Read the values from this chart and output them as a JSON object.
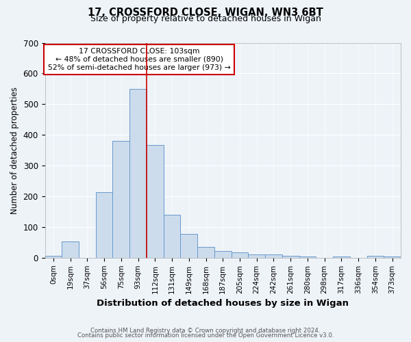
{
  "title1": "17, CROSSFORD CLOSE, WIGAN, WN3 6BT",
  "title2": "Size of property relative to detached houses in Wigan",
  "xlabel": "Distribution of detached houses by size in Wigan",
  "ylabel": "Number of detached properties",
  "bar_labels": [
    "0sqm",
    "19sqm",
    "37sqm",
    "56sqm",
    "75sqm",
    "93sqm",
    "112sqm",
    "131sqm",
    "149sqm",
    "168sqm",
    "187sqm",
    "205sqm",
    "224sqm",
    "242sqm",
    "261sqm",
    "280sqm",
    "298sqm",
    "317sqm",
    "336sqm",
    "354sqm",
    "373sqm"
  ],
  "bar_values": [
    7,
    53,
    0,
    213,
    380,
    550,
    368,
    140,
    78,
    35,
    22,
    17,
    11,
    11,
    7,
    5,
    0,
    3,
    0,
    7,
    5
  ],
  "bar_color": "#ccdcec",
  "bar_edge_color": "#6699cc",
  "background_color": "#eef3f8",
  "grid_color": "#ffffff",
  "red_line_x": 5.52,
  "annotation_text": "17 CROSSFORD CLOSE: 103sqm\n← 48% of detached houses are smaller (890)\n52% of semi-detached houses are larger (973) →",
  "annotation_box_color": "#ffffff",
  "annotation_box_edge": "#cc0000",
  "footnote1": "Contains HM Land Registry data © Crown copyright and database right 2024.",
  "footnote2": "Contains public sector information licensed under the Open Government Licence v3.0.",
  "ylim": [
    0,
    700
  ],
  "yticks": [
    0,
    100,
    200,
    300,
    400,
    500,
    600,
    700
  ]
}
